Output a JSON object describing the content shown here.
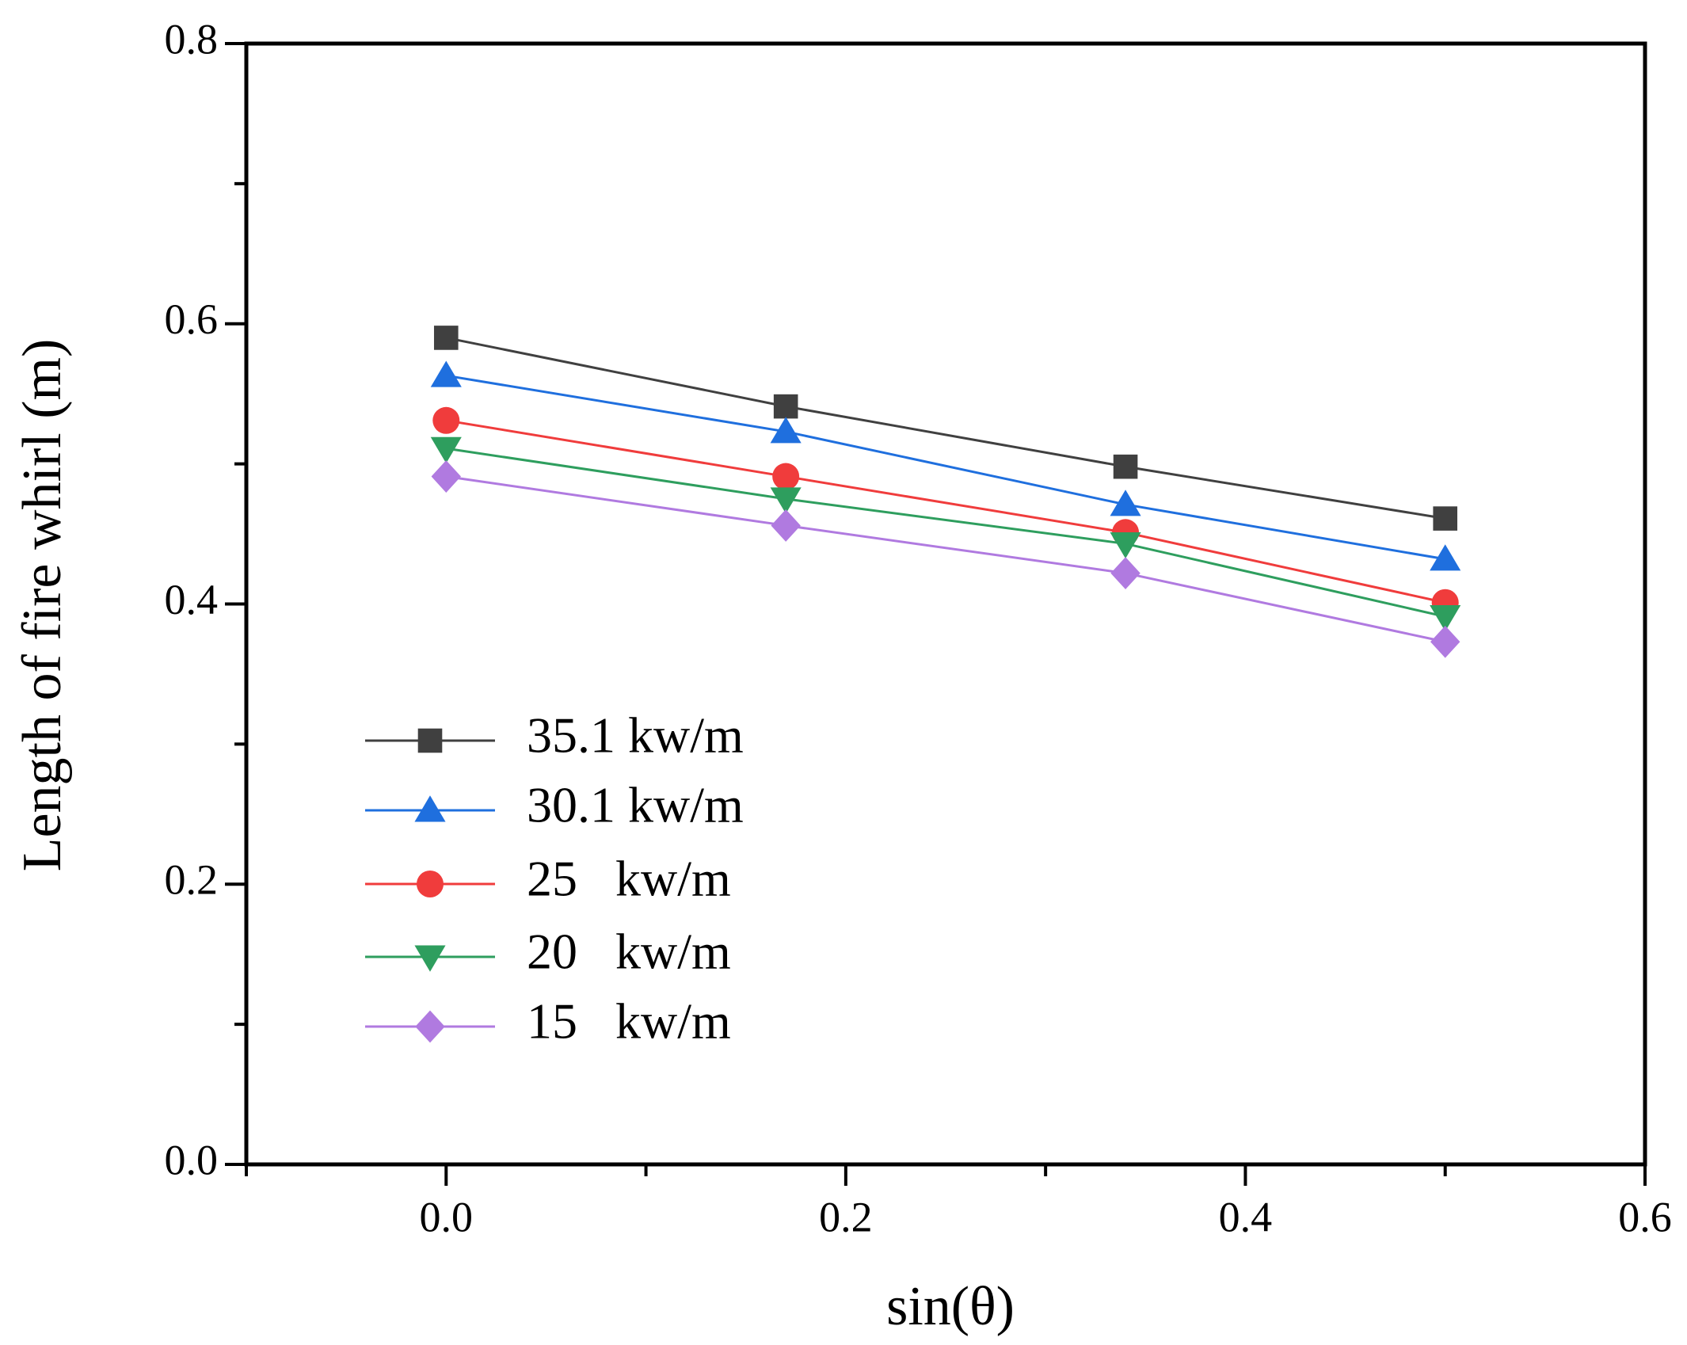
{
  "chart_data": {
    "type": "line",
    "xlabel": "sin(θ)",
    "ylabel": "Length of fire whirl (m)",
    "x": [
      0,
      0.17,
      0.34,
      0.5
    ],
    "series": [
      {
        "name": "35.1 kw/m",
        "color": "#404040",
        "marker": "square",
        "values": [
          0.59,
          0.541,
          0.498,
          0.461
        ]
      },
      {
        "name": "30.1 kw/m",
        "color": "#1f6fde",
        "marker": "triangle-up",
        "values": [
          0.563,
          0.523,
          0.471,
          0.432
        ]
      },
      {
        "name": "25   kw/m",
        "color": "#f03c3c",
        "marker": "circle",
        "values": [
          0.531,
          0.491,
          0.451,
          0.401
        ]
      },
      {
        "name": "20   kw/m",
        "color": "#2e9e5e",
        "marker": "triangle-down",
        "values": [
          0.511,
          0.475,
          0.443,
          0.391
        ]
      },
      {
        "name": "15   kw/m",
        "color": "#b07ae0",
        "marker": "diamond",
        "values": [
          0.491,
          0.456,
          0.422,
          0.373
        ]
      }
    ],
    "xlim": [
      -0.1,
      0.6
    ],
    "xticks": [
      {
        "value": 0,
        "label": "0.0"
      },
      0.2,
      0.4,
      0.6
    ],
    "ylim": [
      0,
      0.8
    ],
    "yticks": [
      {
        "value": 0,
        "label": "0.0"
      },
      0.2,
      0.4,
      0.6,
      0.8
    ],
    "grid": false,
    "legend": "lower left"
  }
}
